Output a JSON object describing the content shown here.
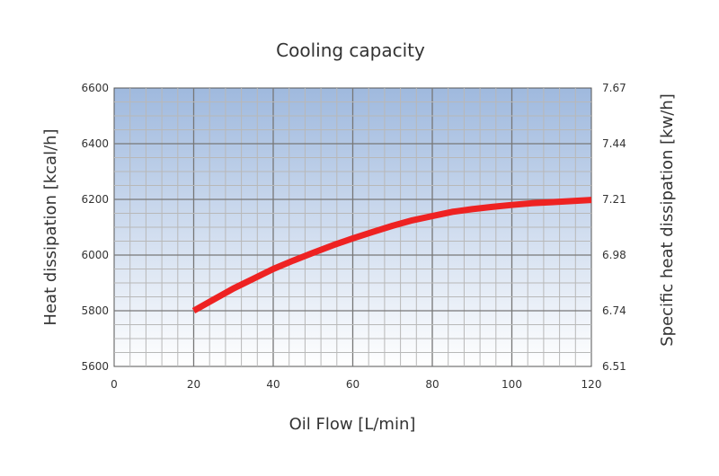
{
  "chart_data": {
    "type": "line",
    "title": "Cooling capacity",
    "xlabel": "Oil Flow [L/min]",
    "ylabel": "Heat dissipation [kcal/h]",
    "y2label": "Specific heat dissipation [kw/h]",
    "xlim": [
      0,
      120
    ],
    "ylim": [
      5600,
      6600
    ],
    "x_ticks": [
      "0",
      "20",
      "40",
      "60",
      "80",
      "100",
      "120"
    ],
    "y_ticks": [
      "5600",
      "5800",
      "6000",
      "6200",
      "6400",
      "6600"
    ],
    "y2_ticks": [
      "6.51",
      "6.74",
      "6.98",
      "7.21",
      "7.44",
      "7.67"
    ],
    "grid": true,
    "line_color": "#ee2222",
    "series": [
      {
        "x": [
          20,
          25,
          30,
          35,
          40,
          45,
          50,
          55,
          60,
          65,
          70,
          75,
          80,
          85,
          90,
          95,
          100,
          105,
          110,
          115,
          120
        ],
        "values": [
          5800,
          5840,
          5880,
          5915,
          5950,
          5980,
          6008,
          6035,
          6060,
          6083,
          6105,
          6125,
          6140,
          6155,
          6165,
          6173,
          6180,
          6186,
          6190,
          6194,
          6198
        ]
      }
    ]
  }
}
